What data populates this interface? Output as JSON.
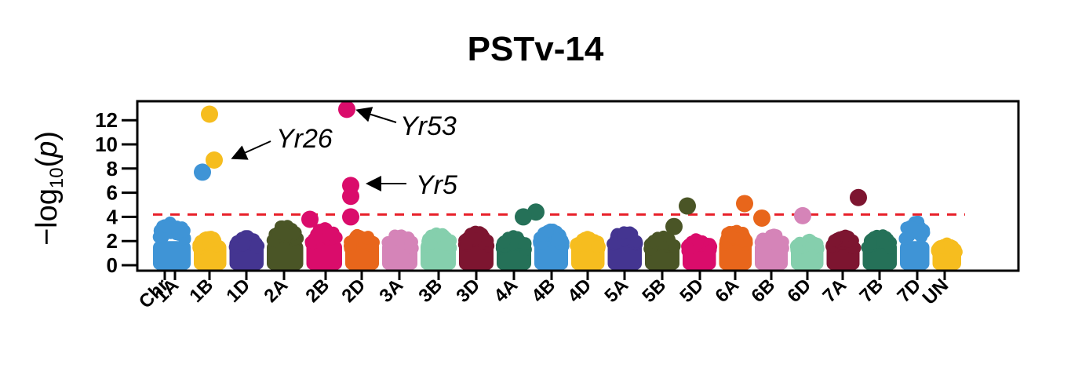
{
  "chart_data": {
    "type": "scatter",
    "subtype": "manhattan",
    "title": "PSTv-14",
    "xlabel": "Chr",
    "ylabel": "-log10(p)",
    "ylim": [
      0,
      13.2
    ],
    "yticks": [
      0,
      2,
      4,
      6,
      8,
      10,
      12
    ],
    "threshold": 4.2,
    "threshold_color": "#e8202a",
    "grid": false,
    "legend": "none",
    "categories": [
      "1A",
      "1B",
      "1D",
      "2A",
      "2B",
      "2D",
      "3A",
      "3B",
      "3D",
      "4A",
      "4B",
      "4D",
      "5A",
      "5B",
      "5D",
      "6A",
      "6B",
      "6D",
      "7A",
      "7B",
      "7D",
      "UN"
    ],
    "colors": [
      "#3f94d6",
      "#f6bd1f",
      "#443591",
      "#4a5526",
      "#da0c6b",
      "#e8661b",
      "#d584b8",
      "#85cfad",
      "#7d1530",
      "#257158",
      "#3f94d6",
      "#f6bd1f",
      "#443591",
      "#4a5526",
      "#da0c6b",
      "#e8661b",
      "#d584b8",
      "#85cfad",
      "#7d1530",
      "#257158",
      "#3f94d6",
      "#f6bd1f"
    ],
    "background_max": [
      3.7,
      2.4,
      2.4,
      3.3,
      3.1,
      2.6,
      2.6,
      2.7,
      2.8,
      2.4,
      3.0,
      2.4,
      2.9,
      2.4,
      2.2,
      3.0,
      2.6,
      2.2,
      2.5,
      2.5,
      3.7,
      1.8
    ],
    "significant_points": [
      {
        "chr": "1A",
        "y": 7.7
      },
      {
        "chr": "1B",
        "y": 12.5
      },
      {
        "chr": "1B",
        "y": 8.7
      },
      {
        "chr": "2B",
        "y": 12.9
      },
      {
        "chr": "2B",
        "y": 6.6
      },
      {
        "chr": "2B",
        "y": 5.7
      },
      {
        "chr": "2B",
        "y": 4.0
      },
      {
        "chr": "2B",
        "y": 3.8
      },
      {
        "chr": "4A",
        "y": 4.4
      },
      {
        "chr": "4A",
        "y": 4.0
      },
      {
        "chr": "5B",
        "y": 4.9
      },
      {
        "chr": "5B",
        "y": 3.2
      },
      {
        "chr": "6A",
        "y": 5.1
      },
      {
        "chr": "6A",
        "y": 3.9
      },
      {
        "chr": "6B",
        "y": 4.1
      },
      {
        "chr": "7A",
        "y": 5.6
      }
    ],
    "annotations": [
      {
        "text": "Yr26",
        "chr": "1B",
        "y": 8.7
      },
      {
        "text": "Yr53",
        "chr": "2B",
        "y": 12.9
      },
      {
        "text": "Yr5",
        "chr": "2B",
        "y": 6.6
      }
    ]
  }
}
